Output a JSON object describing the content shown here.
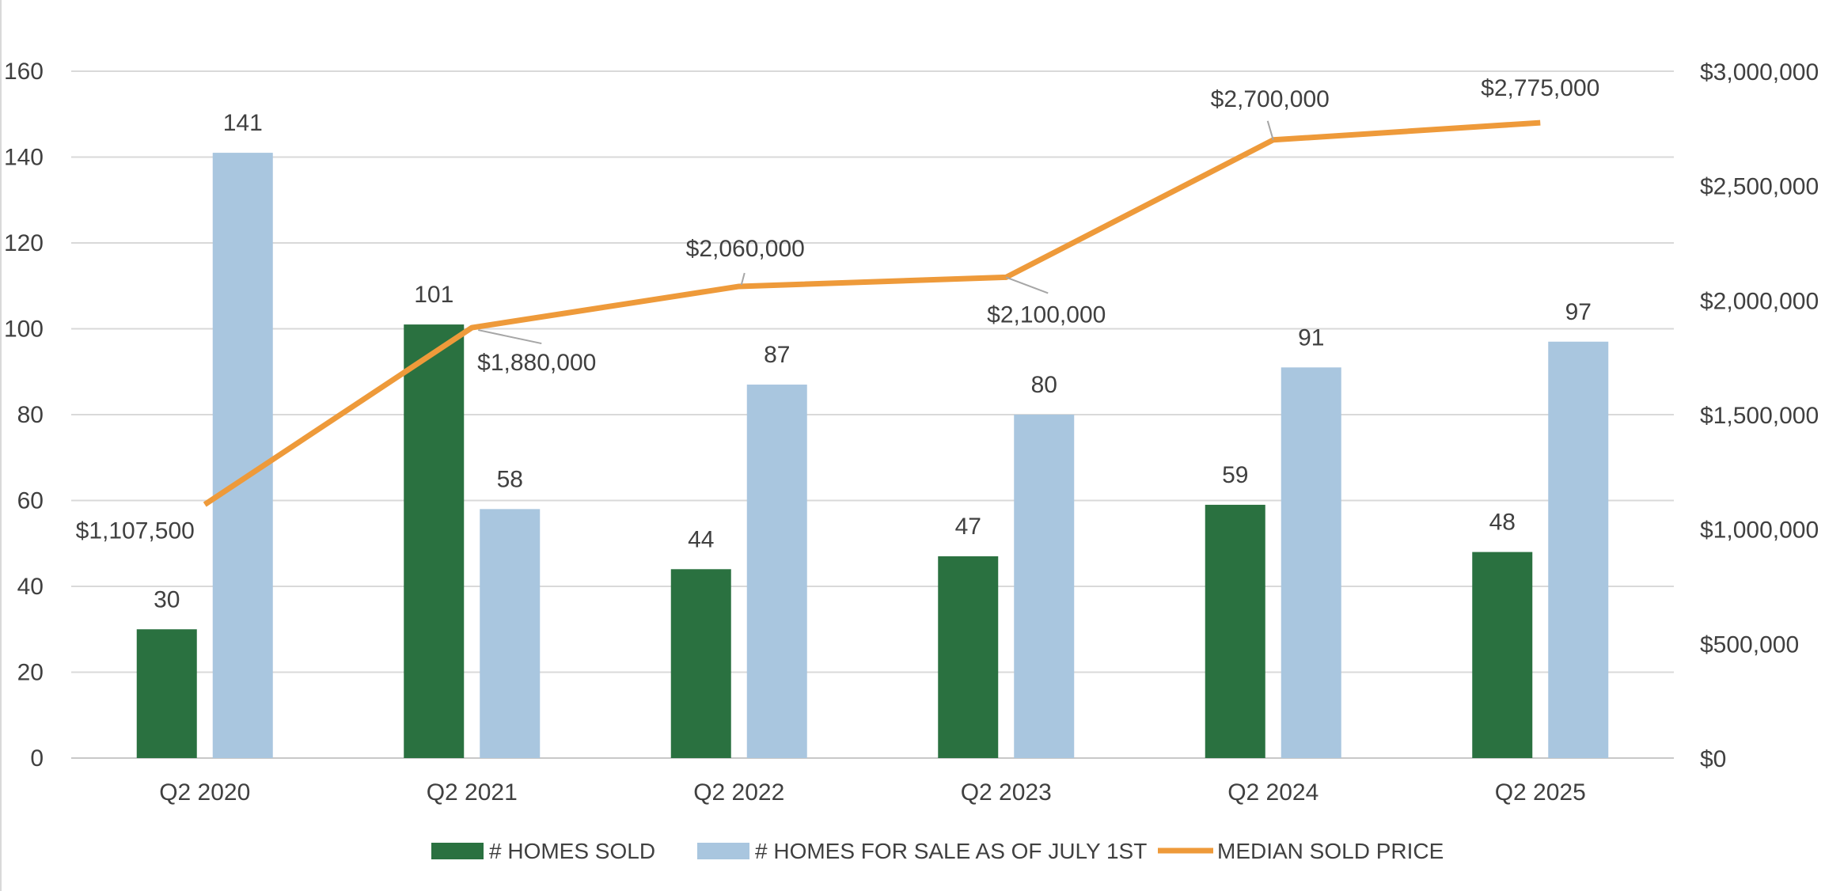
{
  "chart_data": {
    "type": "bar",
    "title": "",
    "xlabel": "",
    "ylabel": "",
    "categories": [
      "Q2 2020",
      "Q2 2021",
      "Q2 2022",
      "Q2 2023",
      "Q2 2024",
      "Q2 2025"
    ],
    "y_left": {
      "min": 0,
      "max": 160,
      "ticks": [
        0,
        20,
        40,
        60,
        80,
        100,
        120,
        140,
        160
      ],
      "tick_labels": [
        "0",
        "20",
        "40",
        "60",
        "80",
        "100",
        "120",
        "140",
        "160"
      ]
    },
    "y_right": {
      "min": 0,
      "max": 3000000,
      "ticks": [
        0,
        500000,
        1000000,
        1500000,
        2000000,
        2500000,
        3000000
      ],
      "tick_labels": [
        "$0",
        "$500,000",
        "$1,000,000",
        "$1,500,000",
        "$2,000,000",
        "$2,500,000",
        "$3,000,000"
      ]
    },
    "grid": true,
    "legend_position": "bottom",
    "series": [
      {
        "name": "# HOMES SOLD",
        "type": "bar",
        "axis": "left",
        "color": "#2a7140",
        "values": [
          30,
          101,
          44,
          47,
          59,
          48
        ],
        "labels": [
          "30",
          "101",
          "44",
          "47",
          "59",
          "48"
        ]
      },
      {
        "name": "# HOMES FOR SALE AS OF JULY 1ST",
        "type": "bar",
        "axis": "left",
        "color": "#a9c6df",
        "values": [
          141,
          58,
          87,
          80,
          91,
          97
        ],
        "labels": [
          "141",
          "58",
          "87",
          "80",
          "91",
          "97"
        ]
      },
      {
        "name": "MEDIAN SOLD PRICE",
        "type": "line",
        "axis": "right",
        "color": "#ee9a3a",
        "values": [
          1107500,
          1880000,
          2060000,
          2100000,
          2700000,
          2775000
        ],
        "labels": [
          "$1,107,500",
          "$1,880,000",
          "$2,060,000",
          "$2,100,000",
          "$2,700,000",
          "$2,775,000"
        ]
      }
    ],
    "colors": {
      "grid": "#d9d9d9",
      "axis": "#c8c8c8",
      "text": "#404040",
      "leader": "#a6a6a6"
    }
  }
}
